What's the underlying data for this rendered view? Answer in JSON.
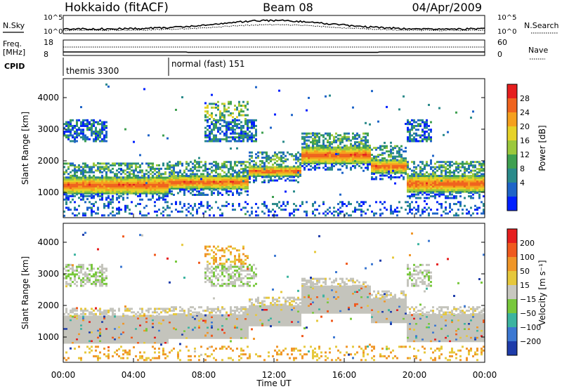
{
  "header": {
    "station": "Hokkaido (fitACF)",
    "beam": "Beam 08",
    "date": "04/Apr/2009"
  },
  "strips": {
    "nsky_label": "N.Sky",
    "nsky_ticks": [
      "10^5",
      "10^0"
    ],
    "nsearch_label": "N.Search",
    "nsearch_ticks": [
      "10^5",
      "10^0"
    ],
    "freq_label": "Freq.",
    "freq_unit": "[MHz]",
    "freq_ticks": [
      "18",
      "8"
    ],
    "nave_label": "Nave",
    "nave_ticks": [
      "60",
      "0"
    ],
    "cpid_label": "CPID",
    "cpid_modes": [
      {
        "name": "themis 3300",
        "start_hour": 0,
        "end_hour": 6
      },
      {
        "name": "normal (fast) 151",
        "start_hour": 6,
        "end_hour": 24
      }
    ]
  },
  "chart_data": [
    {
      "type": "heatmap",
      "title": "",
      "quantity": "Power",
      "xlabel": "",
      "ylabel": "Slant Range [km]",
      "xlim": [
        0,
        24
      ],
      "ylim": [
        200,
        4600
      ],
      "y_ticks": [
        "1000",
        "2000",
        "3000",
        "4000"
      ],
      "colorbar": {
        "label": "Power [dB]",
        "ticks": [
          "4",
          "8",
          "12",
          "16",
          "20",
          "24",
          "28"
        ],
        "colors": [
          "#0020ff",
          "#1e64c8",
          "#2a8a8a",
          "#3fa050",
          "#9bc83c",
          "#e6d228",
          "#f5a01e",
          "#f0641e",
          "#e61e1e"
        ]
      },
      "echo_bands_km": [
        {
          "start_hour": 0.0,
          "end_hour": 6.0,
          "range": [
            950,
            1450
          ]
        },
        {
          "start_hour": 6.0,
          "end_hour": 10.5,
          "range": [
            1100,
            1500
          ]
        },
        {
          "start_hour": 10.5,
          "end_hour": 13.5,
          "range": [
            1500,
            1800
          ]
        },
        {
          "start_hour": 13.5,
          "end_hour": 17.5,
          "range": [
            1900,
            2400
          ]
        },
        {
          "start_hour": 17.5,
          "end_hour": 19.5,
          "range": [
            1600,
            2000
          ]
        },
        {
          "start_hour": 19.5,
          "end_hour": 24.0,
          "range": [
            1000,
            1500
          ]
        }
      ]
    },
    {
      "type": "heatmap",
      "title": "",
      "quantity": "Velocity",
      "xlabel": "Time UT",
      "ylabel": "Slant Range [km]",
      "xlim": [
        0,
        24
      ],
      "ylim": [
        200,
        4600
      ],
      "x_ticks": [
        "00:00",
        "04:00",
        "08:00",
        "12:00",
        "16:00",
        "20:00",
        "00:00"
      ],
      "y_ticks": [
        "1000",
        "2000",
        "3000",
        "4000"
      ],
      "colorbar": {
        "label": "Velocity [m s⁻¹]",
        "ticks": [
          "200",
          "100",
          "50",
          "15",
          "−15",
          "−50",
          "−100",
          "−200"
        ],
        "colors": [
          "#1e3caa",
          "#3c78d2",
          "#3cb4a0",
          "#78c83c",
          "#c8c8c0",
          "#e6c83c",
          "#f09628",
          "#f05a1e",
          "#e61e1e"
        ]
      },
      "ground_scatter_color": "#c4c4bc"
    }
  ]
}
